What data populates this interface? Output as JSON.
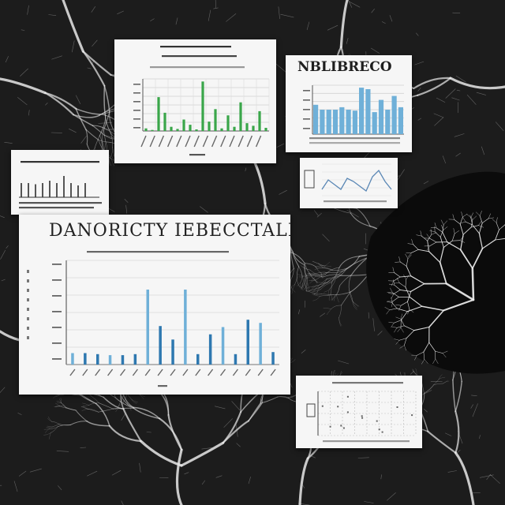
{
  "colors": {
    "background": "#1c1c1c",
    "vein": "#e8e8e8",
    "card": "#f6f6f6",
    "green_bar": "#3aa64a",
    "blue_bar": "#6fb0d8",
    "blue_bar_dark": "#2e78b0",
    "line": "#5a87b5"
  },
  "text": {
    "main_title": "DANORICTY IEBECCTALI",
    "top_right_title": "NBLIBRECO"
  },
  "cards": {
    "top_center": {
      "bars": [
        0.05,
        0.02,
        0.65,
        0.35,
        0.08,
        0.04,
        0.22,
        0.12,
        0.03,
        0.95,
        0.18,
        0.42,
        0.05,
        0.3,
        0.08,
        0.55,
        0.15,
        0.1,
        0.38,
        0.06
      ],
      "bar_color": "#3aa64a"
    },
    "top_right": {
      "bars": [
        0.6,
        0.5,
        0.5,
        0.5,
        0.55,
        0.5,
        0.48,
        0.95,
        0.92,
        0.45,
        0.7,
        0.5,
        0.78,
        0.55
      ],
      "bar_color": "#6fb0d8"
    },
    "left_small": {
      "bars": [
        0.6,
        0.6,
        0.55,
        0.6,
        0.7,
        0.6,
        0.9,
        0.6,
        0.5,
        0.6
      ]
    },
    "line_card": {
      "points": [
        0.2,
        0.5,
        0.35,
        0.2,
        0.55,
        0.45,
        0.3,
        0.15,
        0.6,
        0.8,
        0.45,
        0.2
      ]
    },
    "main_chart": {
      "bars": [
        0.11,
        0.11,
        0.1,
        0.09,
        0.09,
        0.1,
        0.72,
        0.37,
        0.24,
        0.72,
        0.1,
        0.29,
        0.36,
        0.1,
        0.43,
        0.4,
        0.12
      ],
      "bar_color": "#2e78b0"
    }
  }
}
